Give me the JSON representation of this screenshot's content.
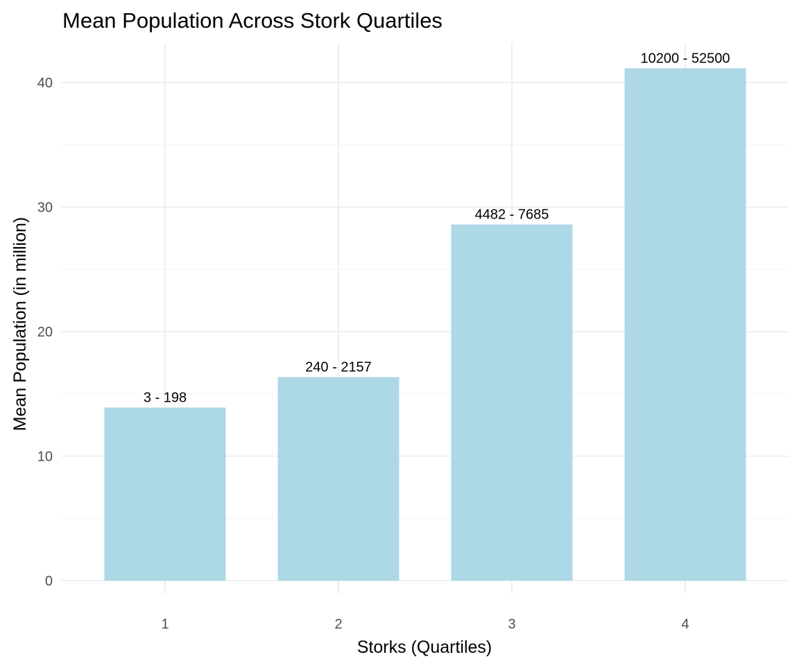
{
  "chart_data": {
    "type": "bar",
    "title": "Mean Population Across Stork Quartiles",
    "xlabel": "Storks (Quartiles)",
    "ylabel": "Mean Population (in million)",
    "categories": [
      "1",
      "2",
      "3",
      "4"
    ],
    "values": [
      13.9,
      16.35,
      28.6,
      41.15
    ],
    "bar_labels": [
      "3 - 198",
      "240 - 2157",
      "4482 - 7685",
      "10200 - 52500"
    ],
    "ylim": [
      0,
      42
    ],
    "yticks": [
      0,
      10,
      20,
      30,
      40
    ],
    "grid": true,
    "legend": "none",
    "bar_color": "#add8e6"
  }
}
